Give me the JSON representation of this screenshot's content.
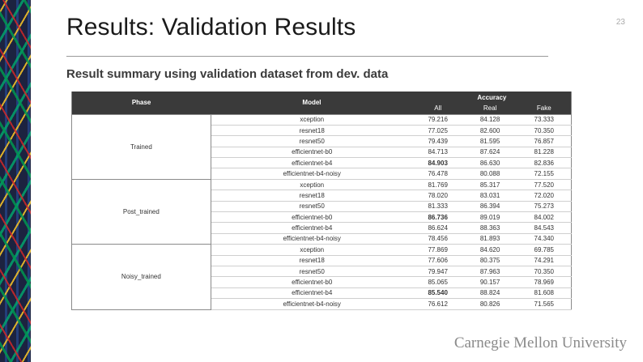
{
  "slide": {
    "title": "Results: Validation Results",
    "number": "23",
    "subtitle": "Result summary using validation dataset from dev. data",
    "logo_text": "Carnegie Mellon University"
  },
  "colors": {
    "header_bg": "#3a3a3a",
    "title_rule": "#999999",
    "logo": "#8a8a8a"
  },
  "table": {
    "headers": {
      "phase": "Phase",
      "model": "Model",
      "accuracy": "Accuracy",
      "all": "All",
      "real": "Real",
      "fake": "Fake"
    },
    "groups": [
      {
        "phase": "Trained",
        "rows": [
          {
            "model": "xception",
            "all": "79.216",
            "real": "84.128",
            "fake": "73.333",
            "bold": false
          },
          {
            "model": "resnet18",
            "all": "77.025",
            "real": "82.600",
            "fake": "70.350",
            "bold": false
          },
          {
            "model": "resnet50",
            "all": "79.439",
            "real": "81.595",
            "fake": "76.857",
            "bold": false
          },
          {
            "model": "efficientnet-b0",
            "all": "84.713",
            "real": "87.624",
            "fake": "81.228",
            "bold": false
          },
          {
            "model": "efficientnet-b4",
            "all": "84.903",
            "real": "86.630",
            "fake": "82.836",
            "bold": true
          },
          {
            "model": "efficientnet-b4-noisy",
            "all": "76.478",
            "real": "80.088",
            "fake": "72.155",
            "bold": false
          }
        ]
      },
      {
        "phase": "Post_trained",
        "rows": [
          {
            "model": "xception",
            "all": "81.769",
            "real": "85.317",
            "fake": "77.520",
            "bold": false
          },
          {
            "model": "resnet18",
            "all": "78.020",
            "real": "83.031",
            "fake": "72.020",
            "bold": false
          },
          {
            "model": "resnet50",
            "all": "81.333",
            "real": "86.394",
            "fake": "75.273",
            "bold": false
          },
          {
            "model": "efficientnet-b0",
            "all": "86.736",
            "real": "89.019",
            "fake": "84.002",
            "bold": true
          },
          {
            "model": "efficientnet-b4",
            "all": "86.624",
            "real": "88.363",
            "fake": "84.543",
            "bold": false
          },
          {
            "model": "efficientnet-b4-noisy",
            "all": "78.456",
            "real": "81.893",
            "fake": "74.340",
            "bold": false
          }
        ]
      },
      {
        "phase": "Noisy_trained",
        "rows": [
          {
            "model": "xception",
            "all": "77.869",
            "real": "84.620",
            "fake": "69.785",
            "bold": false
          },
          {
            "model": "resnet18",
            "all": "77.606",
            "real": "80.375",
            "fake": "74.291",
            "bold": false
          },
          {
            "model": "resnet50",
            "all": "79.947",
            "real": "87.963",
            "fake": "70.350",
            "bold": false
          },
          {
            "model": "efficientnet-b0",
            "all": "85.065",
            "real": "90.157",
            "fake": "78.969",
            "bold": false
          },
          {
            "model": "efficientnet-b4",
            "all": "85.540",
            "real": "88.824",
            "fake": "81.608",
            "bold": true
          },
          {
            "model": "efficientnet-b4-noisy",
            "all": "76.612",
            "real": "80.826",
            "fake": "71.565",
            "bold": false
          }
        ]
      }
    ]
  }
}
